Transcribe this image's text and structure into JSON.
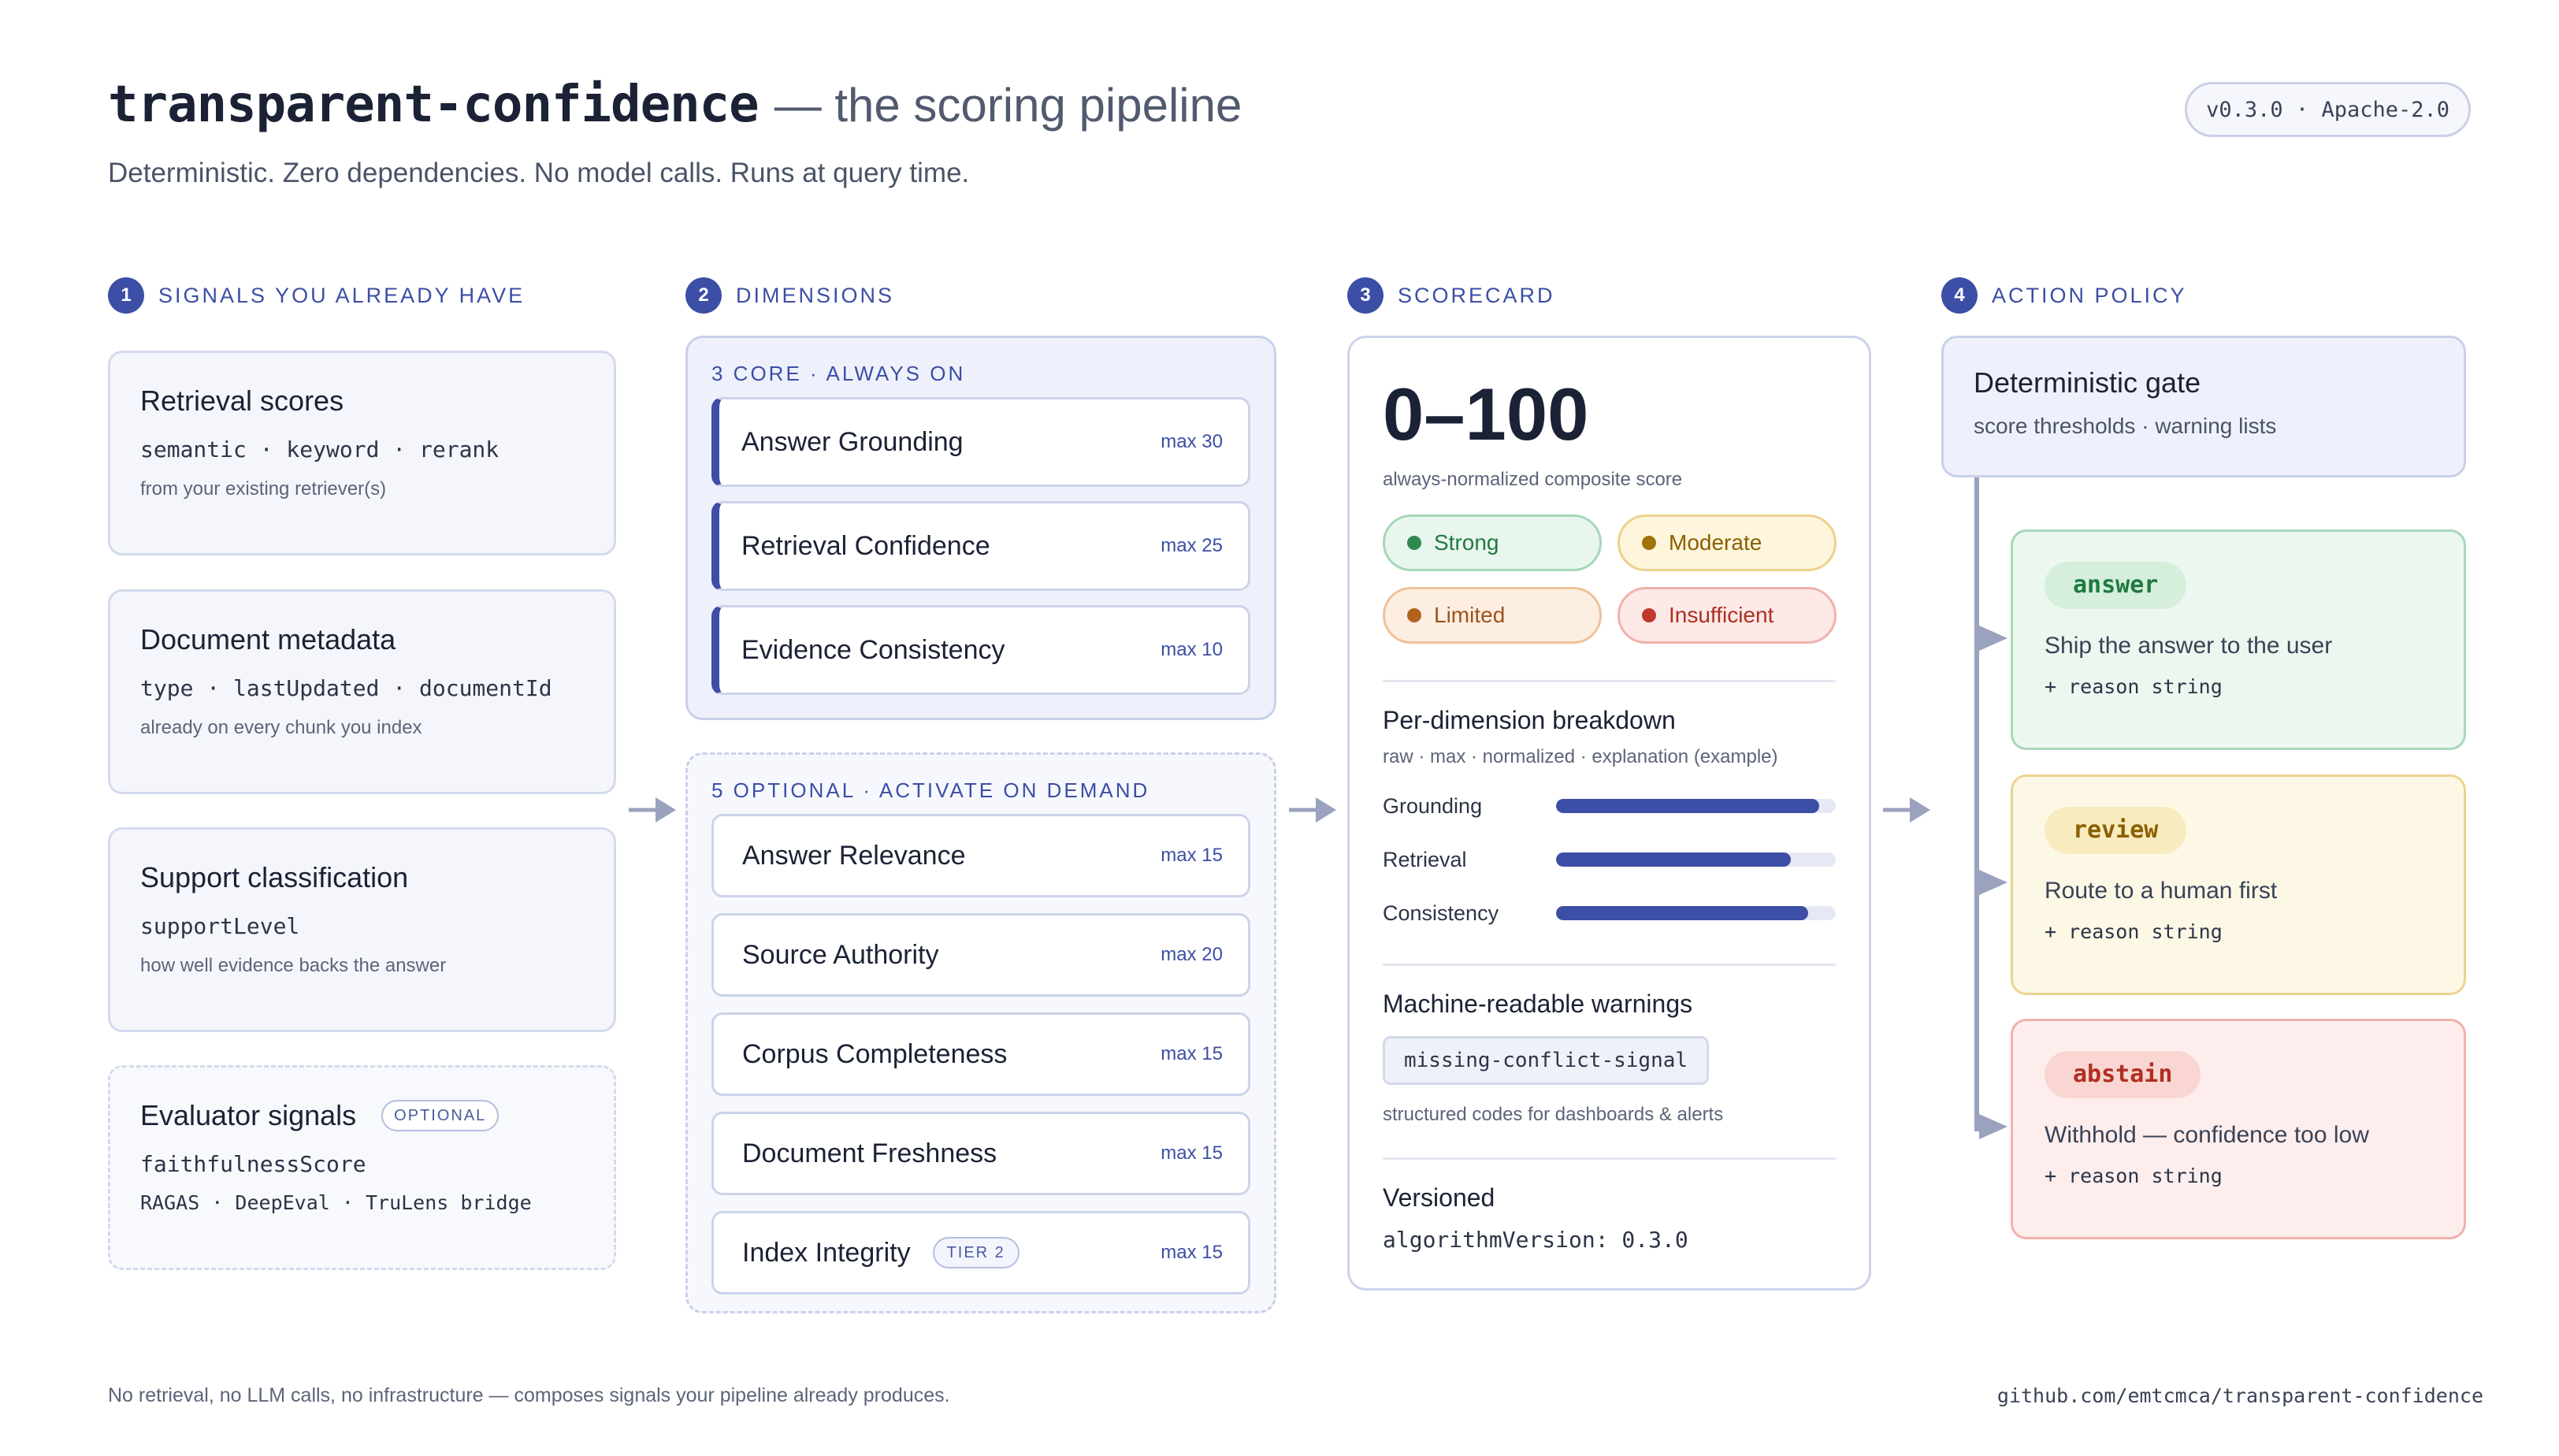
{
  "header": {
    "title_code": "transparent-confidence",
    "title_rest": "— the scoring pipeline",
    "subtitle": "Deterministic. Zero dependencies. No model calls. Runs at query time.",
    "version": "v0.3.0 · Apache-2.0"
  },
  "steps": [
    {
      "num": "1",
      "label": "SIGNALS YOU ALREADY HAVE"
    },
    {
      "num": "2",
      "label": "DIMENSIONS"
    },
    {
      "num": "3",
      "label": "SCORECARD"
    },
    {
      "num": "4",
      "label": "ACTION POLICY"
    }
  ],
  "signals": [
    {
      "title": "Retrieval scores",
      "mono": "semantic · keyword · rerank",
      "note": "from your existing retriever(s)"
    },
    {
      "title": "Document metadata",
      "mono": "type · lastUpdated · documentId",
      "note": "already on every chunk you index"
    },
    {
      "title": "Support classification",
      "mono": "supportLevel",
      "note": "how well evidence backs the answer"
    },
    {
      "title": "Evaluator signals",
      "badge": "OPTIONAL",
      "mono": "faithfulnessScore",
      "mono2": "RAGAS · DeepEval · TruLens bridge"
    }
  ],
  "dimensions": {
    "core_label": "3 CORE · ALWAYS ON",
    "core": [
      {
        "name": "Answer Grounding",
        "max": "max 30"
      },
      {
        "name": "Retrieval Confidence",
        "max": "max 25"
      },
      {
        "name": "Evidence Consistency",
        "max": "max 10"
      }
    ],
    "optional_label": "5 OPTIONAL · ACTIVATE ON DEMAND",
    "optional": [
      {
        "name": "Answer Relevance",
        "max": "max 15"
      },
      {
        "name": "Source Authority",
        "max": "max 20"
      },
      {
        "name": "Corpus Completeness",
        "max": "max 15"
      },
      {
        "name": "Document Freshness",
        "max": "max 15"
      },
      {
        "name": "Index Integrity",
        "tier": "TIER 2",
        "max": "max 15"
      }
    ]
  },
  "scorecard": {
    "range": "0–100",
    "caption": "always-normalized composite score",
    "badges": [
      {
        "label": "Strong",
        "dot": "#2e8a4e",
        "bg": "#e9f6ee",
        "border": "#a6d7b6",
        "text": "#1f7a3f"
      },
      {
        "label": "Moderate",
        "dot": "#a0720a",
        "bg": "#fdf5dc",
        "border": "#ecd28c",
        "text": "#8a5f00"
      },
      {
        "label": "Limited",
        "dot": "#b3621e",
        "bg": "#fdeee2",
        "border": "#f0c199",
        "text": "#a1521a"
      },
      {
        "label": "Insufficient",
        "dot": "#c0392b",
        "bg": "#fde9e7",
        "border": "#f0b2ab",
        "text": "#b02e22"
      }
    ],
    "breakdown_title": "Per-dimension breakdown",
    "breakdown_sub": "raw · max · normalized · explanation (example)",
    "bars": [
      {
        "label": "Grounding",
        "value": 0.94
      },
      {
        "label": "Retrieval",
        "value": 0.84
      },
      {
        "label": "Consistency",
        "value": 0.9
      }
    ],
    "warnings_title": "Machine-readable warnings",
    "warning_code": "missing-conflict-signal",
    "warnings_note": "structured codes for dashboards & alerts",
    "versioned_title": "Versioned",
    "versioned_code": "algorithmVersion: 0.3.0"
  },
  "policy": {
    "gate_title": "Deterministic gate",
    "gate_sub": "score thresholds · warning lists",
    "actions": [
      {
        "pill": "answer",
        "desc": "Ship the answer to the user",
        "reason": "+ reason string",
        "bg": "#ecf7f0",
        "border": "#a9d8b8",
        "pill_bg": "#d5efdc",
        "pill_text": "#1f7a3f"
      },
      {
        "pill": "review",
        "desc": "Route to a human first",
        "reason": "+ reason string",
        "bg": "#fdf8e6",
        "border": "#ecd38e",
        "pill_bg": "#f8ebbf",
        "pill_text": "#8a5f00"
      },
      {
        "pill": "abstain",
        "desc": "Withhold — confidence too low",
        "reason": "+ reason string",
        "bg": "#fdeeed",
        "border": "#f0b2ab",
        "pill_bg": "#f9d6d2",
        "pill_text": "#b02e22"
      }
    ]
  },
  "footer": {
    "left": "No retrieval, no LLM calls, no infrastructure — composes signals your pipeline already produces.",
    "right": "github.com/emtcmca/transparent-confidence"
  },
  "colors": {
    "accent": "#3c4ea5",
    "arrow": "#9aa2bd"
  }
}
